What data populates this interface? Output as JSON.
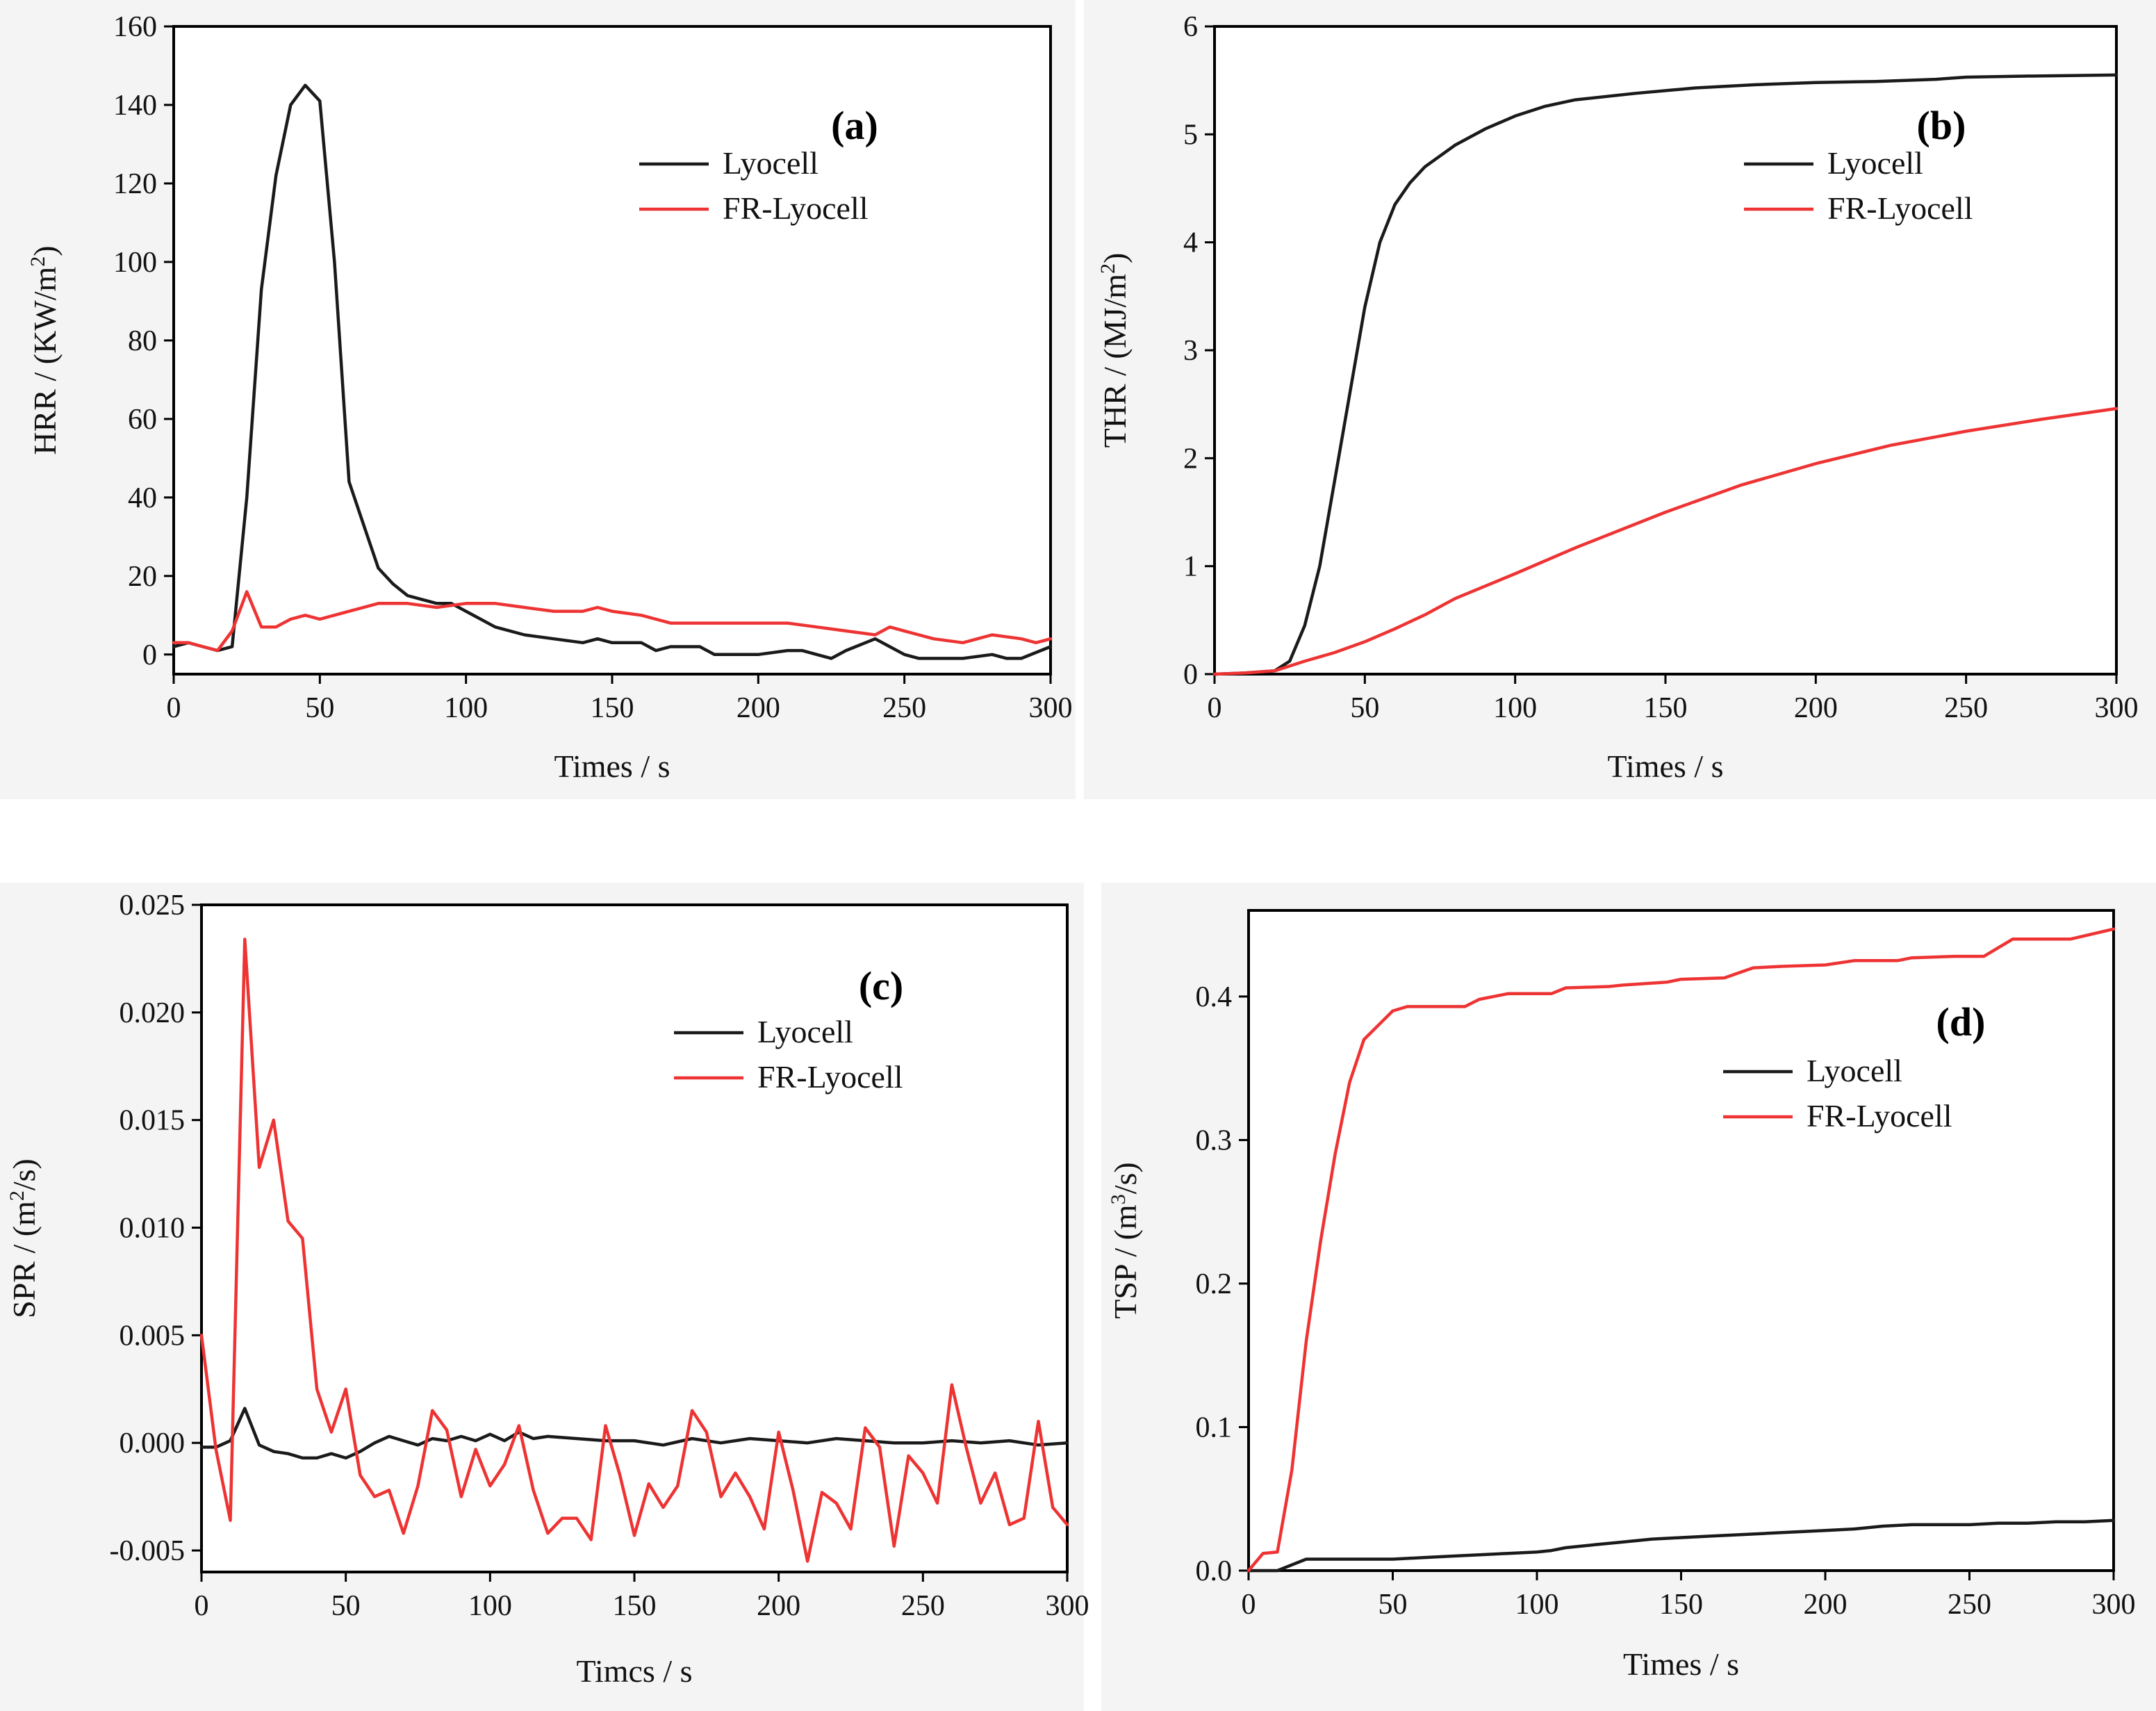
{
  "chart_data": [
    {
      "type": "line",
      "panel": "(a)",
      "xlabel": "Times / s",
      "ylabel": "HRR / (KW/m",
      "ylabel_sup": "2",
      "ylabel_end": ")",
      "xlim": [
        0,
        300
      ],
      "ylim": [
        -5,
        160
      ],
      "xticks": [
        0,
        50,
        100,
        150,
        200,
        250,
        300
      ],
      "yticks": [
        0,
        20,
        40,
        60,
        80,
        100,
        120,
        140,
        160
      ],
      "ytick_decimals": 0,
      "legend_position": "upper-right",
      "series": [
        {
          "name": "Lyocell",
          "color": "#1a1a1a",
          "x": [
            0,
            5,
            10,
            15,
            20,
            25,
            30,
            35,
            40,
            45,
            50,
            55,
            60,
            65,
            70,
            75,
            80,
            85,
            90,
            95,
            100,
            110,
            120,
            130,
            140,
            145,
            150,
            160,
            165,
            170,
            180,
            185,
            190,
            200,
            210,
            215,
            220,
            225,
            230,
            240,
            245,
            250,
            255,
            260,
            270,
            280,
            285,
            290,
            300
          ],
          "y": [
            2,
            3,
            2,
            1,
            2,
            40,
            93,
            122,
            140,
            145,
            141,
            100,
            44,
            33,
            22,
            18,
            15,
            14,
            13,
            13,
            11,
            7,
            5,
            4,
            3,
            4,
            3,
            3,
            1,
            2,
            2,
            0,
            0,
            0,
            1,
            1,
            0,
            -1,
            1,
            4,
            2,
            0,
            -1,
            -1,
            -1,
            0,
            -1,
            -1,
            2
          ]
        },
        {
          "name": "FR-Lyocell",
          "color": "#ee3333",
          "x": [
            0,
            5,
            10,
            15,
            20,
            25,
            30,
            35,
            40,
            45,
            50,
            60,
            70,
            80,
            90,
            100,
            110,
            120,
            130,
            140,
            145,
            150,
            160,
            170,
            180,
            190,
            200,
            210,
            220,
            230,
            240,
            245,
            250,
            260,
            270,
            275,
            280,
            290,
            295,
            300
          ],
          "y": [
            3,
            3,
            2,
            1,
            6,
            16,
            7,
            7,
            9,
            10,
            9,
            11,
            13,
            13,
            12,
            13,
            13,
            12,
            11,
            11,
            12,
            11,
            10,
            8,
            8,
            8,
            8,
            8,
            7,
            6,
            5,
            7,
            6,
            4,
            3,
            4,
            5,
            4,
            3,
            4
          ]
        }
      ]
    },
    {
      "type": "line",
      "panel": "(b)",
      "xlabel": "Times / s",
      "ylabel": "THR / (MJ/m",
      "ylabel_sup": "2",
      "ylabel_end": ")",
      "xlim": [
        0,
        300
      ],
      "ylim": [
        0,
        6
      ],
      "xticks": [
        0,
        50,
        100,
        150,
        200,
        250,
        300
      ],
      "yticks": [
        0,
        1,
        2,
        3,
        4,
        5,
        6
      ],
      "ytick_decimals": 0,
      "legend_position": "upper-right",
      "series": [
        {
          "name": "Lyocell",
          "color": "#1a1a1a",
          "x": [
            0,
            10,
            20,
            25,
            30,
            35,
            40,
            45,
            50,
            55,
            60,
            65,
            70,
            80,
            90,
            100,
            110,
            120,
            140,
            160,
            180,
            200,
            220,
            240,
            250,
            270,
            300
          ],
          "y": [
            0,
            0.01,
            0.03,
            0.12,
            0.45,
            1.0,
            1.8,
            2.6,
            3.4,
            4.0,
            4.35,
            4.55,
            4.7,
            4.9,
            5.05,
            5.17,
            5.26,
            5.32,
            5.38,
            5.43,
            5.46,
            5.48,
            5.49,
            5.51,
            5.53,
            5.54,
            5.55
          ]
        },
        {
          "name": "FR-Lyocell",
          "color": "#ee3333",
          "x": [
            0,
            10,
            20,
            30,
            40,
            50,
            60,
            70,
            80,
            100,
            120,
            150,
            175,
            200,
            225,
            250,
            275,
            300
          ],
          "y": [
            0,
            0.01,
            0.03,
            0.12,
            0.2,
            0.3,
            0.42,
            0.55,
            0.7,
            0.93,
            1.17,
            1.5,
            1.75,
            1.95,
            2.12,
            2.25,
            2.36,
            2.46
          ]
        }
      ]
    },
    {
      "type": "line",
      "panel": "(c)",
      "xlabel": "Timcs / s",
      "ylabel": "SPR / (m",
      "ylabel_sup": "2",
      "ylabel_end": "/s)",
      "xlim": [
        0,
        300
      ],
      "ylim": [
        -0.006,
        0.025
      ],
      "xticks": [
        0,
        50,
        100,
        150,
        200,
        250,
        300
      ],
      "yticks": [
        -0.005,
        0,
        0.005,
        0.01,
        0.015,
        0.02,
        0.025
      ],
      "ytick_decimals": 3,
      "legend_position": "upper-right",
      "series": [
        {
          "name": "Lyocell",
          "color": "#1a1a1a",
          "x": [
            0,
            5,
            10,
            15,
            20,
            25,
            30,
            35,
            40,
            45,
            50,
            55,
            60,
            65,
            70,
            75,
            80,
            85,
            90,
            95,
            100,
            105,
            110,
            115,
            120,
            130,
            140,
            150,
            160,
            170,
            180,
            190,
            200,
            210,
            220,
            230,
            240,
            250,
            260,
            270,
            280,
            290,
            300
          ],
          "y": [
            -0.0002,
            -0.0002,
            0.0001,
            0.0016,
            -0.0001,
            -0.0004,
            -0.0005,
            -0.0007,
            -0.0007,
            -0.0005,
            -0.0007,
            -0.0004,
            0.0,
            0.0003,
            0.0001,
            -0.0001,
            0.0002,
            0.0001,
            0.0003,
            0.0001,
            0.0004,
            0.0001,
            0.0005,
            0.0002,
            0.0003,
            0.0002,
            0.0001,
            0.0001,
            -0.0001,
            0.0002,
            0.0,
            0.0002,
            0.0001,
            0.0,
            0.0002,
            0.0001,
            0.0,
            0.0,
            0.0001,
            0.0,
            0.0001,
            -0.0001,
            0.0
          ]
        },
        {
          "name": "FR-Lyocell",
          "color": "#ee3333",
          "x": [
            0,
            5,
            10,
            15,
            20,
            25,
            30,
            35,
            40,
            45,
            50,
            55,
            60,
            65,
            70,
            75,
            80,
            85,
            90,
            95,
            100,
            105,
            110,
            115,
            120,
            125,
            130,
            135,
            140,
            145,
            150,
            155,
            160,
            165,
            170,
            175,
            180,
            185,
            190,
            195,
            200,
            205,
            210,
            215,
            220,
            225,
            230,
            235,
            240,
            245,
            250,
            255,
            260,
            265,
            270,
            275,
            280,
            285,
            290,
            295,
            300
          ],
          "y": [
            0.005,
            -0.0003,
            -0.0036,
            0.0234,
            0.0128,
            0.015,
            0.0103,
            0.0095,
            0.0025,
            0.0005,
            0.0025,
            -0.0015,
            -0.0025,
            -0.0022,
            -0.0042,
            -0.002,
            0.0015,
            0.0006,
            -0.0025,
            -0.0003,
            -0.002,
            -0.001,
            0.0008,
            -0.0022,
            -0.0042,
            -0.0035,
            -0.0035,
            -0.0045,
            0.0008,
            -0.0015,
            -0.0043,
            -0.0019,
            -0.003,
            -0.002,
            0.0015,
            0.0005,
            -0.0025,
            -0.0014,
            -0.0025,
            -0.004,
            0.0005,
            -0.0022,
            -0.0055,
            -0.0023,
            -0.0028,
            -0.004,
            0.0007,
            -0.0002,
            -0.0048,
            -0.0006,
            -0.0014,
            -0.0028,
            0.0027,
            -0.0002,
            -0.0028,
            -0.0014,
            -0.0038,
            -0.0035,
            0.001,
            -0.003,
            -0.0038
          ]
        }
      ]
    },
    {
      "type": "line",
      "panel": "(d)",
      "xlabel": "Times / s",
      "ylabel": "TSP / (m",
      "ylabel_sup": "3",
      "ylabel_end": "/s)",
      "xlim": [
        0,
        300
      ],
      "ylim": [
        0,
        0.46
      ],
      "xticks": [
        0,
        50,
        100,
        150,
        200,
        250,
        300
      ],
      "yticks": [
        0,
        0.1,
        0.2,
        0.3,
        0.4
      ],
      "ytick_decimals": 1,
      "legend_position": "upper-right",
      "series": [
        {
          "name": "Lyocell",
          "color": "#1a1a1a",
          "x": [
            0,
            10,
            15,
            20,
            25,
            40,
            50,
            60,
            70,
            80,
            90,
            100,
            105,
            110,
            120,
            130,
            140,
            150,
            160,
            170,
            180,
            190,
            200,
            210,
            220,
            230,
            240,
            250,
            260,
            270,
            280,
            290,
            300
          ],
          "y": [
            0,
            0,
            0.004,
            0.008,
            0.008,
            0.008,
            0.008,
            0.009,
            0.01,
            0.011,
            0.012,
            0.013,
            0.014,
            0.016,
            0.018,
            0.02,
            0.022,
            0.023,
            0.024,
            0.025,
            0.026,
            0.027,
            0.028,
            0.029,
            0.031,
            0.032,
            0.032,
            0.032,
            0.033,
            0.033,
            0.034,
            0.034,
            0.035
          ]
        },
        {
          "name": "FR-Lyocell",
          "color": "#ee3333",
          "x": [
            0,
            5,
            10,
            15,
            20,
            25,
            30,
            35,
            40,
            45,
            50,
            55,
            75,
            80,
            90,
            105,
            110,
            125,
            130,
            145,
            150,
            165,
            175,
            185,
            200,
            210,
            225,
            230,
            245,
            255,
            265,
            285,
            300
          ],
          "y": [
            0,
            0.012,
            0.013,
            0.07,
            0.16,
            0.23,
            0.29,
            0.34,
            0.37,
            0.38,
            0.39,
            0.393,
            0.393,
            0.398,
            0.402,
            0.402,
            0.406,
            0.407,
            0.408,
            0.41,
            0.412,
            0.413,
            0.42,
            0.421,
            0.422,
            0.425,
            0.425,
            0.427,
            0.428,
            0.428,
            0.44,
            0.44,
            0.447
          ]
        }
      ]
    }
  ]
}
